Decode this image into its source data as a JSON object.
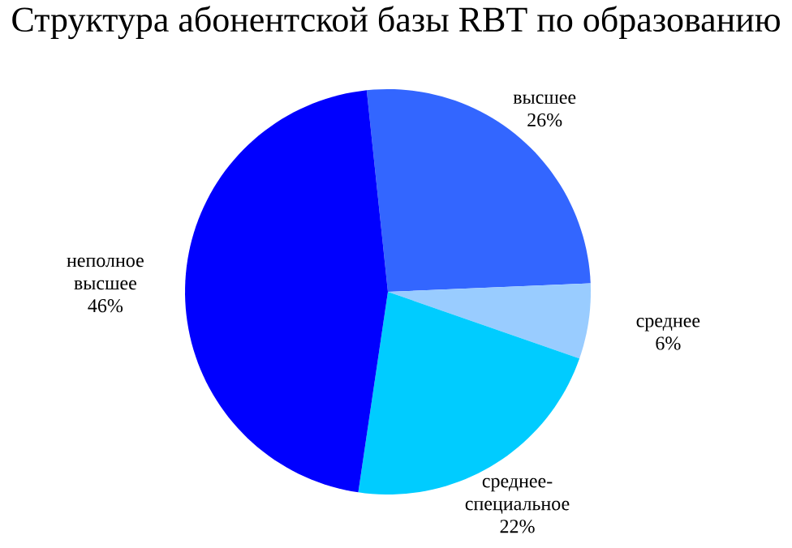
{
  "chart_data": {
    "type": "pie",
    "title": "Структура абонентской базы RBT по образованию",
    "categories": [
      "высшее",
      "среднее",
      "среднее-специальное",
      "неполное высшее"
    ],
    "values": [
      26,
      6,
      22,
      46
    ],
    "value_labels": [
      "26%",
      "6%",
      "22%",
      "46%"
    ],
    "colors": [
      "#3366ff",
      "#99ccff",
      "#00ccff",
      "#0000ff"
    ]
  }
}
